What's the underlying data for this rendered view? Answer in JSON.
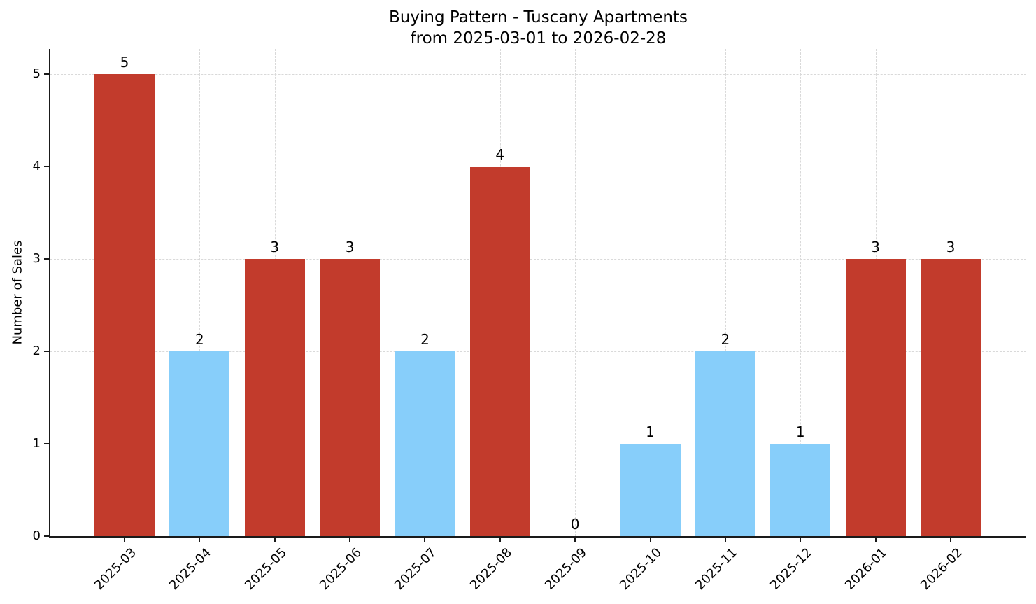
{
  "chart_data": {
    "type": "bar",
    "title": "Buying Pattern - Tuscany Apartments",
    "subtitle": "from 2025-03-01 to 2026-02-28",
    "xlabel": "",
    "ylabel": "Number of Sales",
    "categories": [
      "2025-03",
      "2025-04",
      "2025-05",
      "2025-06",
      "2025-07",
      "2025-08",
      "2025-09",
      "2025-10",
      "2025-11",
      "2025-12",
      "2026-01",
      "2026-02"
    ],
    "values": [
      5,
      2,
      3,
      3,
      2,
      4,
      0,
      1,
      2,
      1,
      3,
      3
    ],
    "value_labels": [
      "5",
      "2",
      "3",
      "3",
      "2",
      "4",
      "0",
      "1",
      "2",
      "1",
      "3",
      "3"
    ],
    "bar_colors": [
      "#c23b2c",
      "#87cefa",
      "#c23b2c",
      "#c23b2c",
      "#87cefa",
      "#c23b2c",
      "#87cefa",
      "#87cefa",
      "#87cefa",
      "#87cefa",
      "#c23b2c",
      "#c23b2c"
    ],
    "yticks": [
      "0",
      "1",
      "2",
      "3",
      "4",
      "5"
    ],
    "ylim": [
      0,
      5.27
    ],
    "grid": "dashed-both-axes",
    "legend": "none",
    "colors": {
      "high_sales_red": "#c23b2c",
      "low_sales_blue": "#87cefa",
      "gridline": "#d9d9d9",
      "axis": "#1a1a1a",
      "background": "#ffffff"
    }
  }
}
